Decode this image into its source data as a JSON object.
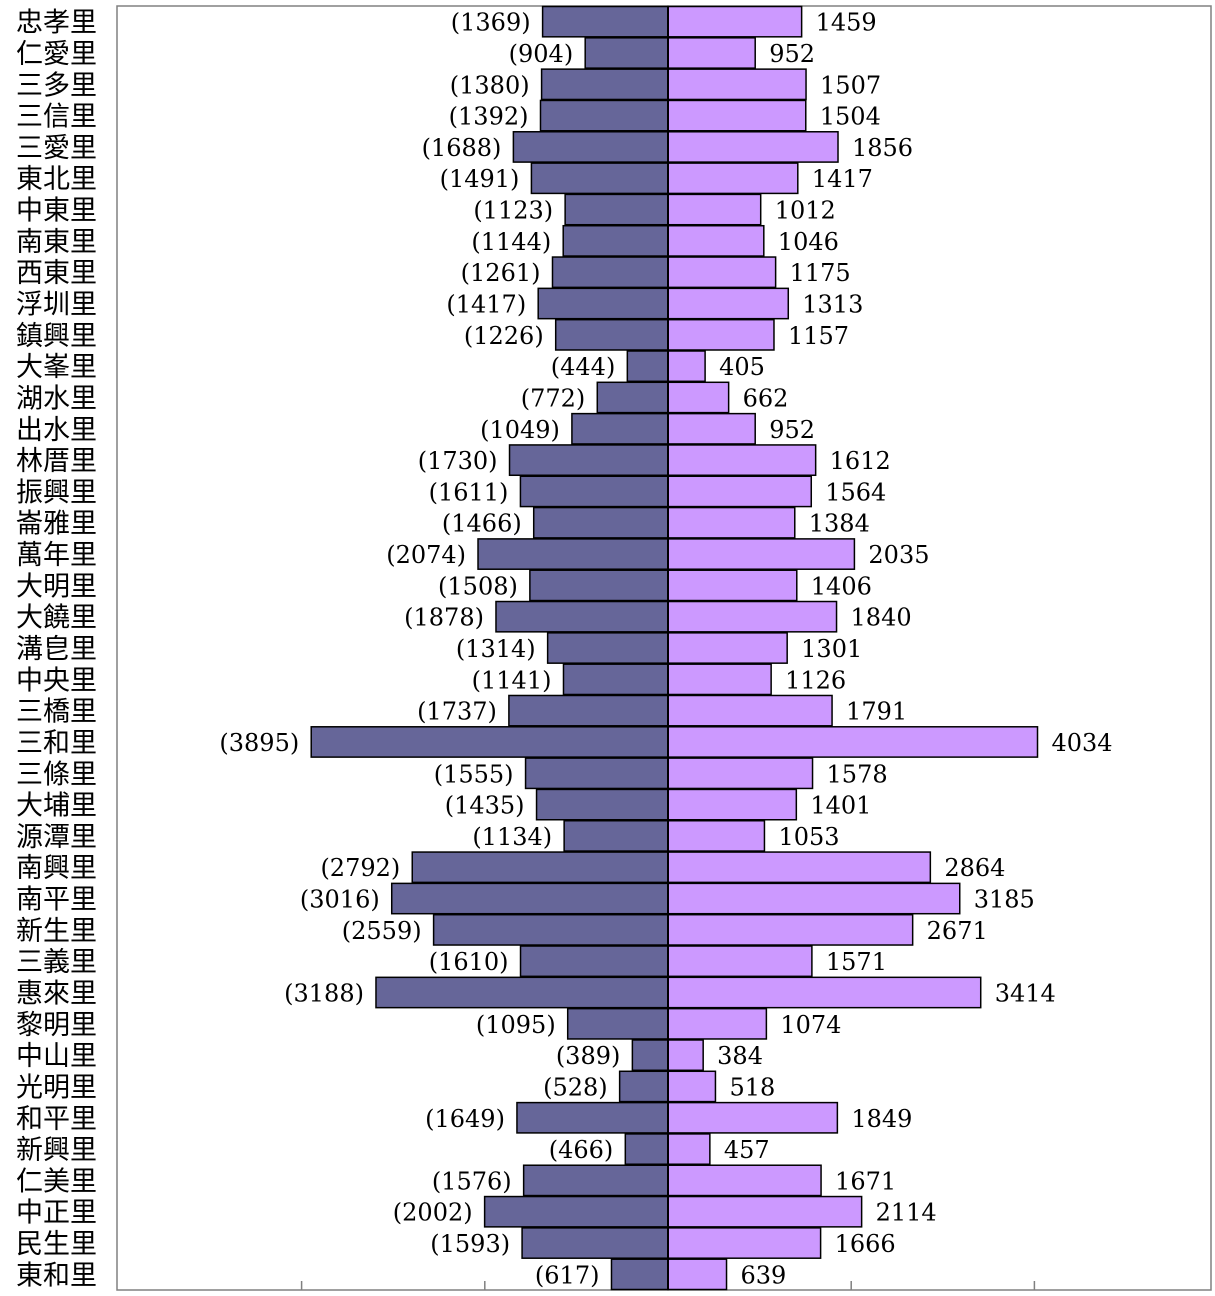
{
  "chart_data": {
    "type": "bar",
    "orientation": "horizontal-butterfly",
    "title": "",
    "xlabel": "",
    "ylabel": "",
    "categories": [
      "忠孝里",
      "仁愛里",
      "三多里",
      "三信里",
      "三愛里",
      "東北里",
      "中東里",
      "南東里",
      "西東里",
      "浮圳里",
      "鎮興里",
      "大峯里",
      "湖水里",
      "出水里",
      "林厝里",
      "振興里",
      "崙雅里",
      "萬年里",
      "大明里",
      "大饒里",
      "溝皀里",
      "中央里",
      "三橋里",
      "三和里",
      "三條里",
      "大埔里",
      "源潭里",
      "南興里",
      "南平里",
      "新生里",
      "三義里",
      "惠來里",
      "黎明里",
      "中山里",
      "光明里",
      "和平里",
      "新興里",
      "仁美里",
      "中正里",
      "民生里",
      "東和里"
    ],
    "series": [
      {
        "values": [
          1369,
          904,
          1380,
          1392,
          1688,
          1491,
          1123,
          1144,
          1261,
          1417,
          1226,
          444,
          772,
          1049,
          1730,
          1611,
          1466,
          2074,
          1508,
          1878,
          1314,
          1141,
          1737,
          3895,
          1555,
          1435,
          1134,
          2792,
          3016,
          2559,
          1610,
          3188,
          1095,
          389,
          528,
          1649,
          466,
          1576,
          2002,
          1593,
          617
        ],
        "labels": [
          "(1369)",
          "(904)",
          "(1380)",
          "(1392)",
          "(1688)",
          "(1491)",
          "(1123)",
          "(1144)",
          "(1261)",
          "(1417)",
          "(1226)",
          "(444)",
          "(772)",
          "(1049)",
          "(1730)",
          "(1611)",
          "(1466)",
          "(2074)",
          "(1508)",
          "(1878)",
          "(1314)",
          "(1141)",
          "(1737)",
          "(3895)",
          "(1555)",
          "(1435)",
          "(1134)",
          "(2792)",
          "(3016)",
          "(2559)",
          "(1610)",
          "(3188)",
          "(1095)",
          "(389)",
          "(528)",
          "(1649)",
          "(466)",
          "(1576)",
          "(2002)",
          "(1593)",
          "(617)"
        ],
        "side": "left",
        "color": "#666699"
      },
      {
        "values": [
          1459,
          952,
          1507,
          1504,
          1856,
          1417,
          1012,
          1046,
          1175,
          1313,
          1157,
          405,
          662,
          952,
          1612,
          1564,
          1384,
          2035,
          1406,
          1840,
          1301,
          1126,
          1791,
          4034,
          1578,
          1401,
          1053,
          2864,
          3185,
          2671,
          1571,
          3414,
          1074,
          384,
          518,
          1849,
          457,
          1671,
          2114,
          1666,
          639
        ],
        "labels": [
          "1459",
          "952",
          "1507",
          "1504",
          "1856",
          "1417",
          "1012",
          "1046",
          "1175",
          "1313",
          "1157",
          "405",
          "662",
          "952",
          "1612",
          "1564",
          "1384",
          "2035",
          "1406",
          "1840",
          "1301",
          "1126",
          "1791",
          "4034",
          "1578",
          "1401",
          "1053",
          "2864",
          "3185",
          "2671",
          "1571",
          "3414",
          "1074",
          "384",
          "518",
          "1849",
          "457",
          "1671",
          "2114",
          "1666",
          "639"
        ],
        "side": "right",
        "color": "#CC99FF"
      }
    ],
    "xlim": [
      -6000,
      6000
    ],
    "axis_ticks": [
      -4000,
      -2000,
      0,
      2000,
      4000
    ],
    "grid": false,
    "legend": "none"
  }
}
